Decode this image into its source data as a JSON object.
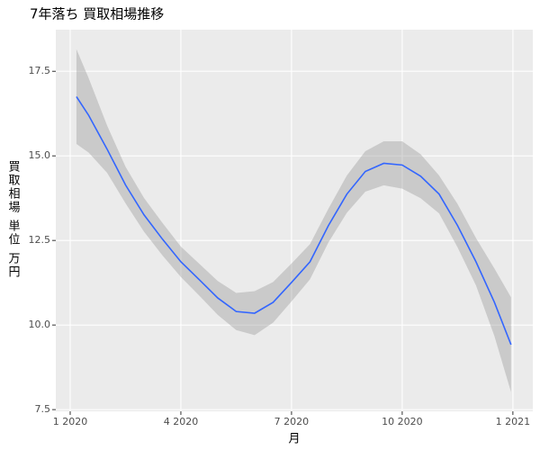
{
  "chart_data": {
    "type": "line",
    "title": "7年落ち 買取相場推移",
    "xlabel": "月",
    "ylabel": "買取相場 単位 万円",
    "series": [
      {
        "color": "#3366ff",
        "band_color": "#999999",
        "x": [
          0.17,
          0.5,
          1,
          1.5,
          2,
          2.5,
          3,
          3.5,
          4,
          4.5,
          5,
          5.5,
          6,
          6.5,
          7,
          7.5,
          8,
          8.5,
          9,
          9.5,
          10,
          10.5,
          11,
          11.5,
          11.95
        ],
        "values": [
          16.75,
          16.2,
          15.2,
          14.14,
          13.26,
          12.54,
          11.87,
          11.34,
          10.8,
          10.4,
          10.35,
          10.67,
          11.26,
          11.87,
          12.94,
          13.87,
          14.54,
          14.78,
          14.73,
          14.4,
          13.87,
          12.94,
          11.87,
          10.67,
          9.42
        ],
        "lower": [
          15.35,
          15.1,
          14.5,
          13.6,
          12.76,
          12.06,
          11.42,
          10.87,
          10.3,
          9.85,
          9.7,
          10.07,
          10.7,
          11.35,
          12.44,
          13.32,
          13.94,
          14.13,
          14.03,
          13.75,
          13.3,
          12.3,
          11.17,
          9.67,
          8.02
        ],
        "upper": [
          18.15,
          17.3,
          15.9,
          14.68,
          13.76,
          13.02,
          12.32,
          11.81,
          11.3,
          10.95,
          11.0,
          11.27,
          11.82,
          12.39,
          13.44,
          14.42,
          15.14,
          15.43,
          15.43,
          15.05,
          14.42,
          13.58,
          12.57,
          11.67,
          10.82
        ]
      }
    ],
    "xlim": [
      -0.39,
      12.54
    ],
    "xticks": [
      {
        "value": 0,
        "label": "1 2020"
      },
      {
        "value": 3,
        "label": "4 2020"
      },
      {
        "value": 6,
        "label": "7 2020"
      },
      {
        "value": 9,
        "label": "10 2020"
      },
      {
        "value": 12,
        "label": "1 2021"
      }
    ],
    "ylim": [
      7.45,
      18.73
    ],
    "yticks": [
      {
        "value": 7.5,
        "label": "7.5"
      },
      {
        "value": 10,
        "label": "10.0"
      },
      {
        "value": 12.5,
        "label": "12.5"
      },
      {
        "value": 15,
        "label": "15.0"
      },
      {
        "value": 17.5,
        "label": "17.5"
      }
    ],
    "grid": true
  }
}
